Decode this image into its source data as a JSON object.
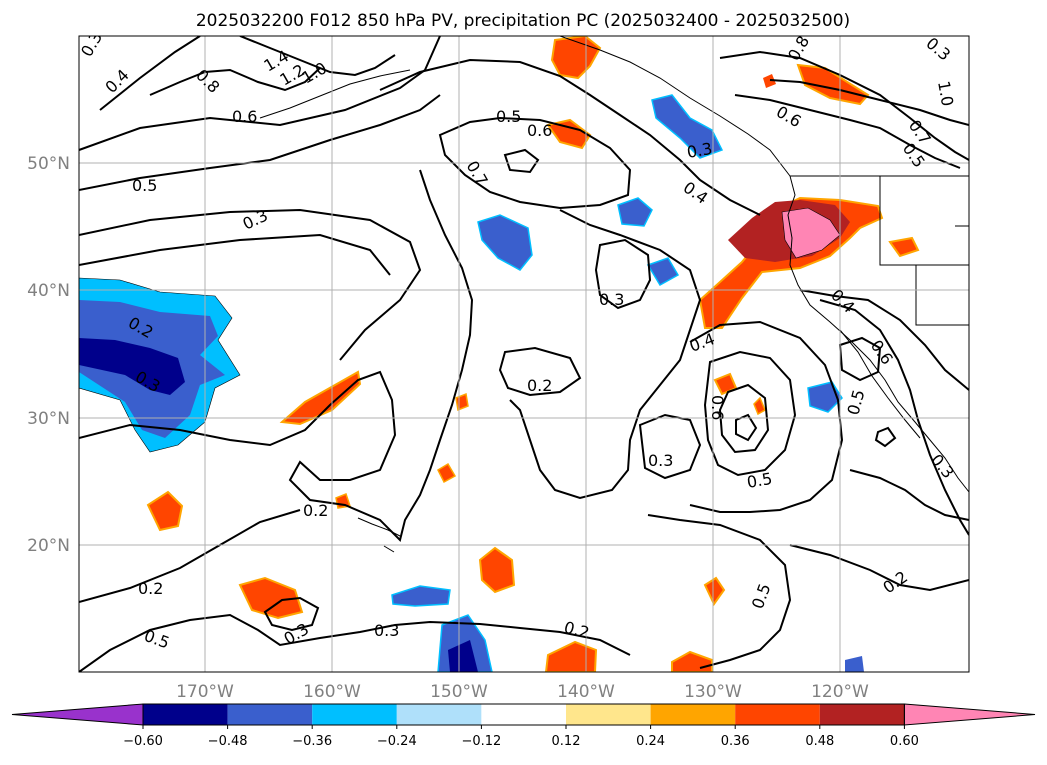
{
  "title": "2025032200 F012 850 hPa PV, precipitation PC (2025032400 - 2025032500)",
  "lat_labels": [
    "50°N",
    "40°N",
    "30°N",
    "20°N"
  ],
  "lon_labels": [
    "170°W",
    "160°W",
    "150°W",
    "140°W",
    "130°W",
    "120°W"
  ],
  "colorbar": {
    "ticks": [
      "−0.60",
      "−0.48",
      "−0.36",
      "−0.24",
      "−0.12",
      "0.12",
      "0.24",
      "0.36",
      "0.48",
      "0.60"
    ],
    "colors": [
      "#9932cc",
      "#00008b",
      "#3a5fcd",
      "#00bfff",
      "#afe0fa",
      "#ffffff",
      "#ffe68c",
      "#ffa500",
      "#ff4500",
      "#b22222",
      "#ff85b4"
    ]
  },
  "contour_labels": [
    "0.3",
    "0.4",
    "0.8",
    "1.4",
    "1.2",
    "1.0",
    "0.6",
    "0.5",
    "0.6",
    "0.7",
    "0.5",
    "0.3",
    "0.4",
    "0.3",
    "0.8",
    "0.6",
    "1.0",
    "0.7",
    "0.5",
    "0.3",
    "0.3",
    "0.2",
    "0.3",
    "0.2",
    "0.4",
    "0.4",
    "0.6",
    "0.5",
    "0.6",
    "0.5",
    "0.3",
    "0.5",
    "0.3",
    "0.2",
    "0.2",
    "0.3",
    "0.3",
    "0.2",
    "0.5",
    "0.2"
  ],
  "colors": {
    "contour": "#000000",
    "grid": "#b0b0b0",
    "coast": "#000000"
  }
}
